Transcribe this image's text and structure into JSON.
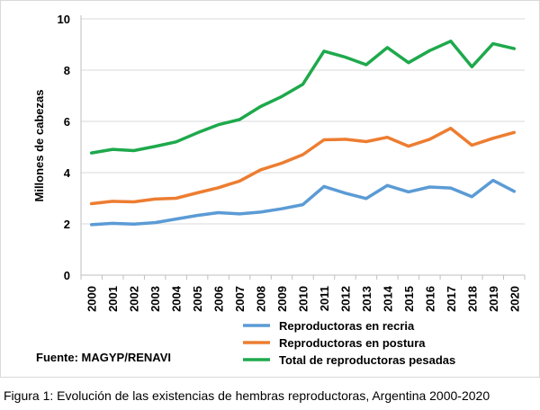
{
  "chart_data": {
    "type": "line",
    "title": "",
    "xlabel": "",
    "ylabel": "Millones de cabezas",
    "ylim": [
      0,
      10
    ],
    "yticks": [
      0,
      2,
      4,
      6,
      8,
      10
    ],
    "grid": true,
    "categories": [
      "2000",
      "2001",
      "2002",
      "2003",
      "2004",
      "2005",
      "2006",
      "2007",
      "2008",
      "2009",
      "2010",
      "2011",
      "2012",
      "2013",
      "2014",
      "2015",
      "2016",
      "2017",
      "2018",
      "2019",
      "2020"
    ],
    "series": [
      {
        "name": "Reproductoras en recria",
        "color": "#5b9bd5",
        "values": [
          1.97,
          2.02,
          1.99,
          2.05,
          2.19,
          2.33,
          2.44,
          2.39,
          2.46,
          2.59,
          2.75,
          3.46,
          3.2,
          2.99,
          3.5,
          3.25,
          3.44,
          3.4,
          3.06,
          3.7,
          3.27
        ]
      },
      {
        "name": "Reproductoras en postura",
        "color": "#ed7d31",
        "values": [
          2.79,
          2.88,
          2.86,
          2.97,
          3.0,
          3.21,
          3.41,
          3.67,
          4.11,
          4.37,
          4.7,
          5.28,
          5.3,
          5.21,
          5.38,
          5.03,
          5.3,
          5.73,
          5.07,
          5.34,
          5.57
        ]
      },
      {
        "name": "Total de reproductoras pesadas",
        "color": "#1ea94c",
        "values": [
          4.77,
          4.91,
          4.86,
          5.02,
          5.2,
          5.55,
          5.87,
          6.07,
          6.58,
          6.97,
          7.45,
          8.74,
          8.51,
          8.21,
          8.88,
          8.29,
          8.76,
          9.13,
          8.13,
          9.03,
          8.84
        ]
      }
    ],
    "legend_position": "bottom-right"
  },
  "source": "Fuente: MAGYP/RENAVI",
  "caption": "Figura 1: Evolución de las existencias de hembras reproductoras, Argentina 2000-2020"
}
